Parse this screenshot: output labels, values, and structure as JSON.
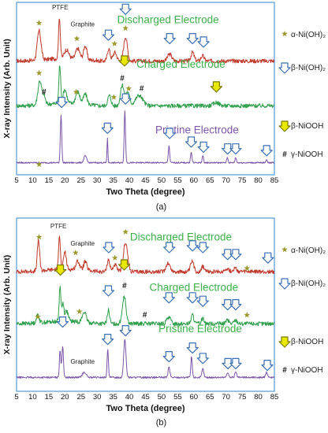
{
  "colors": {
    "frame": "#4f9ad6",
    "discharged": "#c0392b",
    "charged": "#2e9e4a",
    "pristine": "#7b55a8",
    "alpha_star": "#9a9a2e",
    "beta_arrow": "#3a6fb5",
    "beta_arrow_fill": "#ffffff",
    "nooh_arrow": "#e8e800",
    "nooh_arrow_edge": "#7a7a00",
    "label_green": "#3cb04a",
    "label_purple": "#7b55a8"
  },
  "legend": {
    "alpha": "α-Ni(OH)₂",
    "beta": "β-Ni(OH)₂",
    "beta_nooh": "β-NiOOH",
    "gamma": "γ-NiOOH",
    "hash": "#",
    "star": "*"
  },
  "chart_data": [
    {
      "type": "line",
      "panel_label": "(a)",
      "xlabel": "Two Theta (degree)",
      "ylabel": "X-ray Intensity (Arb. Unit)",
      "xlim": [
        5,
        85
      ],
      "xticks": [
        5,
        10,
        15,
        20,
        25,
        30,
        35,
        40,
        45,
        50,
        55,
        60,
        65,
        70,
        75,
        80,
        85
      ],
      "series": [
        {
          "name": "Discharged Electrode",
          "color_key": "discharged",
          "baseline": 0.66,
          "noise": 0.012,
          "peaks": [
            [
              12,
              0.17,
              0.8
            ],
            [
              18.3,
              0.24,
              0.4
            ],
            [
              20.5,
              0.05,
              1.0
            ],
            [
              24,
              0.06,
              0.9
            ],
            [
              26.3,
              0.08,
              0.7
            ],
            [
              33.6,
              0.07,
              0.6
            ],
            [
              35.5,
              0.05,
              0.8
            ],
            [
              38.8,
              0.14,
              0.8
            ],
            [
              52.5,
              0.04,
              0.9
            ],
            [
              59.6,
              0.05,
              0.7
            ],
            [
              62.7,
              0.03,
              0.7
            ]
          ]
        },
        {
          "name": "Charged Electrode",
          "color_key": "charged",
          "baseline": 0.4,
          "noise": 0.012,
          "peaks": [
            [
              12.2,
              0.14,
              0.8
            ],
            [
              13.5,
              0.05,
              0.6
            ],
            [
              18.4,
              0.22,
              0.4
            ],
            [
              20,
              0.08,
              0.8
            ],
            [
              24,
              0.07,
              0.9
            ],
            [
              26.3,
              0.06,
              0.8
            ],
            [
              33.8,
              0.06,
              0.7
            ],
            [
              37.8,
              0.12,
              0.8
            ],
            [
              39.5,
              0.08,
              0.8
            ],
            [
              43,
              0.06,
              1.6
            ],
            [
              67,
              0.02,
              1.2
            ]
          ]
        },
        {
          "name": "Pristine Electrode",
          "color_key": "pristine",
          "baseline": 0.07,
          "noise": 0.004,
          "peaks": [
            [
              18.8,
              0.28,
              0.3
            ],
            [
              26.3,
              0.04,
              0.6
            ],
            [
              33.2,
              0.14,
              0.2
            ],
            [
              38.6,
              0.3,
              0.3
            ],
            [
              52.3,
              0.1,
              0.3
            ],
            [
              59.2,
              0.06,
              0.3
            ],
            [
              62.8,
              0.04,
              0.3
            ],
            [
              70.4,
              0.03,
              0.3
            ],
            [
              73,
              0.03,
              0.3
            ],
            [
              82.6,
              0.02,
              0.3
            ]
          ]
        }
      ],
      "text_labels": [
        {
          "text": "Discharged Electrode",
          "color_key": "label_green",
          "x": 52,
          "y": 0.88
        },
        {
          "text": "Charged Electrode",
          "color_key": "label_green",
          "x": 56,
          "y": 0.62
        },
        {
          "text": "Pristine Electrode",
          "color_key": "label_purple",
          "x": 61,
          "y": 0.24
        },
        {
          "text": "PTFE",
          "color_key": "",
          "x": 18.5,
          "y": 0.96
        },
        {
          "text": "Graphite",
          "color_key": "",
          "x": 25.5,
          "y": 0.86
        }
      ],
      "markers": [
        {
          "kind": "star",
          "x": 12,
          "y": 0.88
        },
        {
          "kind": "star",
          "x": 23.7,
          "y": 0.79
        },
        {
          "kind": "star",
          "x": 35.4,
          "y": 0.76
        },
        {
          "kind": "star",
          "x": 38.8,
          "y": 0.85
        },
        {
          "kind": "beta",
          "x": 33.5,
          "y": 0.78
        },
        {
          "kind": "beta",
          "x": 38.8,
          "y": 0.93
        },
        {
          "kind": "beta",
          "x": 52.5,
          "y": 0.76
        },
        {
          "kind": "beta",
          "x": 59.6,
          "y": 0.76
        },
        {
          "kind": "beta",
          "x": 63,
          "y": 0.74
        },
        {
          "kind": "star",
          "x": 12,
          "y": 0.59
        },
        {
          "kind": "hash",
          "x": 13.5,
          "y": 0.48
        },
        {
          "kind": "star",
          "x": 23.5,
          "y": 0.48
        },
        {
          "kind": "hash",
          "x": 37.8,
          "y": 0.56
        },
        {
          "kind": "nooh",
          "x": 38.5,
          "y": 0.63
        },
        {
          "kind": "star",
          "x": 39.8,
          "y": 0.5
        },
        {
          "kind": "star",
          "x": 35.2,
          "y": 0.45
        },
        {
          "kind": "hash",
          "x": 43.8,
          "y": 0.5
        },
        {
          "kind": "nooh",
          "x": 67,
          "y": 0.48
        },
        {
          "kind": "star",
          "x": 12,
          "y": 0.06
        },
        {
          "kind": "beta",
          "x": 19,
          "y": 0.39
        },
        {
          "kind": "beta",
          "x": 33.2,
          "y": 0.24
        },
        {
          "kind": "beta",
          "x": 38.8,
          "y": 0.41
        },
        {
          "kind": "beta",
          "x": 52.5,
          "y": 0.21
        },
        {
          "kind": "beta",
          "x": 59.2,
          "y": 0.16
        },
        {
          "kind": "beta",
          "x": 63,
          "y": 0.13
        },
        {
          "kind": "beta",
          "x": 70.5,
          "y": 0.12
        },
        {
          "kind": "beta",
          "x": 73,
          "y": 0.12
        },
        {
          "kind": "beta",
          "x": 82.6,
          "y": 0.11
        }
      ]
    },
    {
      "type": "line",
      "panel_label": "(b)",
      "xlabel": "Two Theta (degree)",
      "ylabel": "X-ray Intensity (Arb. Unit)",
      "xlim": [
        5,
        85
      ],
      "xticks": [
        5,
        10,
        15,
        20,
        25,
        30,
        35,
        40,
        45,
        50,
        55,
        60,
        65,
        70,
        75,
        80,
        85
      ],
      "series": [
        {
          "name": "Discharged Electrode",
          "color_key": "discharged",
          "baseline": 0.69,
          "noise": 0.012,
          "peaks": [
            [
              11.8,
              0.18,
              0.5
            ],
            [
              18.3,
              0.2,
              0.4
            ],
            [
              20,
              0.1,
              0.6
            ],
            [
              24,
              0.05,
              0.8
            ],
            [
              26.3,
              0.05,
              0.7
            ],
            [
              33.5,
              0.07,
              0.6
            ],
            [
              35.5,
              0.04,
              0.8
            ],
            [
              38.8,
              0.17,
              0.9
            ],
            [
              52,
              0.05,
              0.9
            ],
            [
              59.5,
              0.06,
              0.7
            ],
            [
              62.8,
              0.03,
              0.7
            ],
            [
              70.3,
              0.02,
              0.8
            ],
            [
              72.8,
              0.02,
              0.8
            ]
          ]
        },
        {
          "name": "Charged Electrode",
          "color_key": "charged",
          "baseline": 0.39,
          "noise": 0.012,
          "peaks": [
            [
              11.6,
              0.05,
              0.6
            ],
            [
              18.5,
              0.2,
              0.4
            ],
            [
              19.4,
              0.1,
              0.4
            ],
            [
              20.5,
              0.06,
              0.7
            ],
            [
              26,
              0.06,
              0.8
            ],
            [
              33.5,
              0.08,
              0.5
            ],
            [
              38.4,
              0.16,
              0.8
            ],
            [
              52.2,
              0.04,
              0.8
            ],
            [
              59.6,
              0.05,
              0.6
            ],
            [
              62.8,
              0.03,
              0.7
            ],
            [
              70.4,
              0.02,
              0.7
            ],
            [
              73,
              0.02,
              0.7
            ]
          ]
        },
        {
          "name": "Pristine Electrode",
          "color_key": "pristine",
          "baseline": 0.08,
          "noise": 0.005,
          "peaks": [
            [
              18.5,
              0.16,
              0.3
            ],
            [
              19.3,
              0.18,
              0.35
            ],
            [
              26,
              0.03,
              0.8
            ],
            [
              33.3,
              0.16,
              0.3
            ],
            [
              38.6,
              0.22,
              0.5
            ],
            [
              52.3,
              0.06,
              0.4
            ],
            [
              59.3,
              0.12,
              0.3
            ],
            [
              62.8,
              0.05,
              0.4
            ],
            [
              70.5,
              0.03,
              0.4
            ],
            [
              73,
              0.03,
              0.4
            ],
            [
              82.6,
              0.03,
              0.4
            ]
          ]
        }
      ],
      "text_labels": [
        {
          "text": "Discharged Electrode",
          "color_key": "label_green",
          "x": 56,
          "y": 0.87
        },
        {
          "text": "Charged Electrode",
          "color_key": "label_green",
          "x": 60,
          "y": 0.58
        },
        {
          "text": "Pristine Electrode",
          "color_key": "label_green",
          "x": 62,
          "y": 0.34
        },
        {
          "text": "PTFE",
          "color_key": "",
          "x": 18,
          "y": 0.94
        },
        {
          "text": "Graphite",
          "color_key": "",
          "x": 25.5,
          "y": 0.84
        },
        {
          "text": "Graphite",
          "color_key": "",
          "x": 25.5,
          "y": 0.16
        }
      ],
      "markers": [
        {
          "kind": "star",
          "x": 12,
          "y": 0.89
        },
        {
          "kind": "star",
          "x": 23.3,
          "y": 0.8
        },
        {
          "kind": "star",
          "x": 35.5,
          "y": 0.77
        },
        {
          "kind": "star",
          "x": 38.8,
          "y": 0.92
        },
        {
          "kind": "beta",
          "x": 33.6,
          "y": 0.8
        },
        {
          "kind": "beta",
          "x": 52.4,
          "y": 0.8
        },
        {
          "kind": "beta",
          "x": 59.6,
          "y": 0.81
        },
        {
          "kind": "beta",
          "x": 62.8,
          "y": 0.8
        },
        {
          "kind": "beta",
          "x": 70.5,
          "y": 0.76
        },
        {
          "kind": "beta",
          "x": 73,
          "y": 0.76
        },
        {
          "kind": "star",
          "x": 76.5,
          "y": 0.71
        },
        {
          "kind": "beta",
          "x": 83,
          "y": 0.74
        },
        {
          "kind": "nooh",
          "x": 18.6,
          "y": 0.67
        },
        {
          "kind": "nooh",
          "x": 38.4,
          "y": 0.7
        },
        {
          "kind": "hash",
          "x": 38.5,
          "y": 0.61
        },
        {
          "kind": "beta",
          "x": 33.5,
          "y": 0.55
        },
        {
          "kind": "beta",
          "x": 52.3,
          "y": 0.51
        },
        {
          "kind": "beta",
          "x": 59.6,
          "y": 0.51
        },
        {
          "kind": "beta",
          "x": 62.8,
          "y": 0.49
        },
        {
          "kind": "beta",
          "x": 70.5,
          "y": 0.47
        },
        {
          "kind": "beta",
          "x": 73,
          "y": 0.47
        },
        {
          "kind": "star",
          "x": 11.6,
          "y": 0.43
        },
        {
          "kind": "star",
          "x": 24.5,
          "y": 0.46
        },
        {
          "kind": "hash",
          "x": 44.8,
          "y": 0.44
        },
        {
          "kind": "star",
          "x": 76.5,
          "y": 0.44
        },
        {
          "kind": "beta",
          "x": 19.3,
          "y": 0.37
        },
        {
          "kind": "beta",
          "x": 33.3,
          "y": 0.27
        },
        {
          "kind": "beta",
          "x": 38.8,
          "y": 0.32
        },
        {
          "kind": "beta",
          "x": 52.3,
          "y": 0.17
        },
        {
          "kind": "beta",
          "x": 59.6,
          "y": 0.22
        },
        {
          "kind": "beta",
          "x": 62.8,
          "y": 0.16
        },
        {
          "kind": "beta",
          "x": 70.6,
          "y": 0.13
        },
        {
          "kind": "beta",
          "x": 73,
          "y": 0.13
        },
        {
          "kind": "beta",
          "x": 82.8,
          "y": 0.12
        }
      ]
    }
  ]
}
